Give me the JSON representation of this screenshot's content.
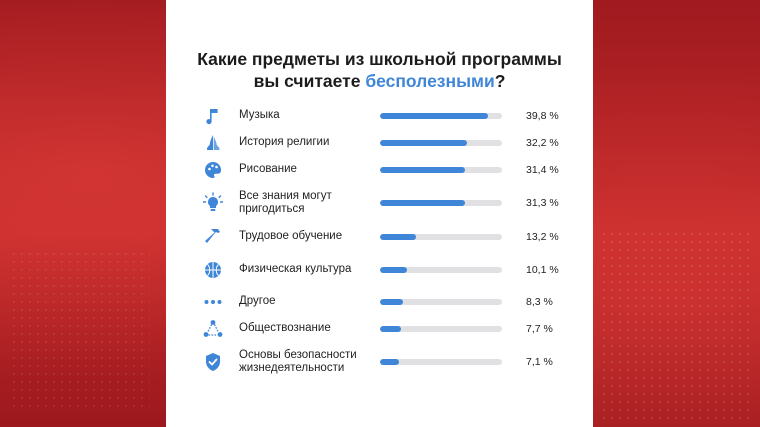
{
  "title": {
    "line1": "Какие предметы из школьной программы",
    "line2_prefix": "вы считаете ",
    "line2_highlight": "бесполезными",
    "line2_suffix": "?"
  },
  "colors": {
    "accent": "#3f86d8",
    "track": "#e1e1e4",
    "background": "#b51f23"
  },
  "chart_data": {
    "type": "bar",
    "orientation": "horizontal",
    "title": "Какие предметы из школьной программы вы считаете бесполезными?",
    "categories": [
      "Музыка",
      "История религии",
      "Рисование",
      "Все знания могут пригодиться",
      "Трудовое обучение",
      "Физическая культура",
      "Другое",
      "Обществознание",
      "Основы безопасности жизнедеятельности"
    ],
    "values": [
      39.8,
      32.2,
      31.4,
      31.3,
      13.2,
      10.1,
      8.3,
      7.7,
      7.1
    ],
    "value_labels": [
      "39,8 %",
      "32,2 %",
      "31,4 %",
      "31,3 %",
      "13,2 %",
      "10,1 %",
      "8,3 %",
      "7,7 %",
      "7,1 %"
    ],
    "icons": [
      "music-note-icon",
      "praying-hands-icon",
      "palette-icon",
      "lightbulb-icon",
      "hammer-icon",
      "basketball-icon",
      "dots-icon",
      "people-network-icon",
      "shield-check-icon"
    ],
    "xlim": [
      0,
      45
    ],
    "grid": false,
    "legend": "none"
  }
}
